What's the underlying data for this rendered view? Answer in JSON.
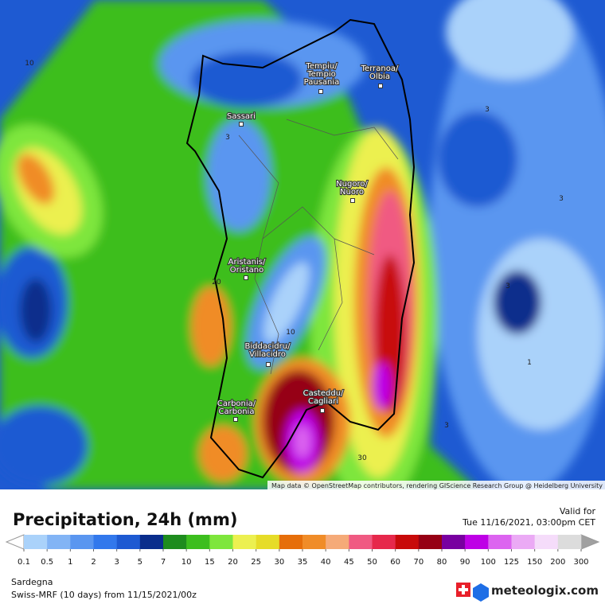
{
  "map": {
    "cities": [
      {
        "lines": [
          "Tempiu/",
          "Tempio",
          "Pausania"
        ]
      },
      {
        "lines": [
          "Terranoa/",
          "Olbia"
        ]
      },
      {
        "lines": [
          "Sassari"
        ]
      },
      {
        "lines": [
          "Nugoro/",
          "Nuoro"
        ]
      },
      {
        "lines": [
          "Aristanis/",
          "Oristano"
        ]
      },
      {
        "lines": [
          "Biddacidru/",
          "Villacidro"
        ]
      },
      {
        "lines": [
          "Casteddu/",
          "Cagliari"
        ]
      },
      {
        "lines": [
          "Carbonia/",
          "Carbonia"
        ]
      }
    ],
    "contour_labels": [
      "10",
      "3",
      "3",
      "3",
      "3",
      "1",
      "3",
      "20",
      "10",
      "30"
    ],
    "attribution": "Map data © OpenStreetMap contributors, rendering GIScience Research Group @ Heidelberg University"
  },
  "legend": {
    "title": "Precipitation, 24h (mm)",
    "valid_label": "Valid for",
    "valid_time": "Tue 11/16/2021, 03:00pm CET",
    "ticks": [
      0.1,
      0.5,
      1,
      2,
      3,
      5,
      7,
      10,
      15,
      20,
      25,
      30,
      35,
      40,
      45,
      50,
      60,
      70,
      80,
      90,
      100,
      125,
      150,
      200,
      300
    ],
    "colors": [
      "#aad2fa",
      "#82b4f5",
      "#5a96f0",
      "#3278ec",
      "#1e5ad2",
      "#0a2d8c",
      "#1e8c1e",
      "#3cbe1e",
      "#7ee63c",
      "#ecf050",
      "#e6dc28",
      "#e66e0a",
      "#f08c28",
      "#f5aa78",
      "#f05a82",
      "#e6284b",
      "#c80a0a",
      "#960014",
      "#7800a0",
      "#be00e6",
      "#dc64f0",
      "#ebaaf5",
      "#f5dcfa",
      "#dcdcdc"
    ],
    "region": "Sardegna",
    "model": "Swiss-MRF (10 days) from 11/15/2021/00z"
  },
  "brand": "meteologix.com"
}
